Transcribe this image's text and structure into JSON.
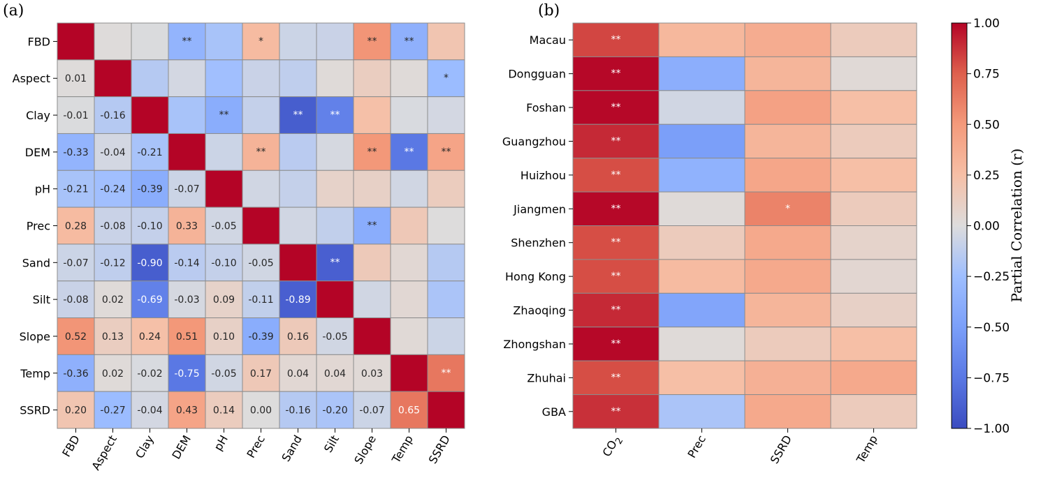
{
  "colors": {
    "cmap": [
      [
        0.0,
        "#3b4cc0"
      ],
      [
        0.125,
        "#5a78e4"
      ],
      [
        0.25,
        "#7b9ff9"
      ],
      [
        0.375,
        "#9ebeff"
      ],
      [
        0.5,
        "#dddcdc"
      ],
      [
        0.625,
        "#f6bfa6"
      ],
      [
        0.75,
        "#f49a7b"
      ],
      [
        0.875,
        "#de604d"
      ],
      [
        1.0,
        "#b40426"
      ]
    ],
    "grid_line": "#8c8c8c"
  },
  "chart_data": [
    {
      "type": "heatmap",
      "panel_label": "(a)",
      "title": "",
      "xlabel": "",
      "ylabel": "",
      "vlim": [
        -1,
        1
      ],
      "layout": "lower-triangle-values-upper-triangle-significance",
      "rows": [
        "FBD",
        "Aspect",
        "Clay",
        "DEM",
        "pH",
        "Prec",
        "Sand",
        "Silt",
        "Slope",
        "Temp",
        "SSRD"
      ],
      "columns": [
        "FBD",
        "Aspect",
        "Clay",
        "DEM",
        "pH",
        "Prec",
        "Sand",
        "Silt",
        "Slope",
        "Temp",
        "SSRD"
      ],
      "values": [
        [
          1,
          0.01,
          -0.01,
          -0.33,
          -0.21,
          0.28,
          -0.07,
          -0.08,
          0.52,
          -0.36,
          0.2
        ],
        [
          0.01,
          1,
          -0.16,
          -0.04,
          -0.24,
          -0.08,
          -0.12,
          0.02,
          0.13,
          0.02,
          -0.27
        ],
        [
          -0.01,
          -0.16,
          1,
          -0.21,
          -0.39,
          -0.1,
          -0.9,
          -0.69,
          0.24,
          -0.02,
          -0.04
        ],
        [
          -0.33,
          -0.04,
          -0.21,
          1,
          -0.07,
          0.33,
          -0.14,
          -0.03,
          0.51,
          -0.75,
          0.43
        ],
        [
          -0.21,
          -0.24,
          -0.39,
          -0.07,
          1,
          -0.05,
          -0.1,
          0.09,
          0.1,
          -0.05,
          0.14
        ],
        [
          0.28,
          -0.08,
          -0.1,
          0.33,
          -0.05,
          1,
          -0.05,
          -0.11,
          -0.39,
          0.17,
          0.0
        ],
        [
          -0.07,
          -0.12,
          -0.9,
          -0.14,
          -0.1,
          -0.05,
          1,
          -0.89,
          0.16,
          0.04,
          -0.16
        ],
        [
          -0.08,
          0.02,
          -0.69,
          -0.03,
          0.09,
          -0.11,
          -0.89,
          1,
          -0.05,
          0.04,
          -0.2
        ],
        [
          0.52,
          0.13,
          0.24,
          0.51,
          0.1,
          -0.39,
          0.16,
          -0.05,
          1,
          0.03,
          -0.07
        ],
        [
          -0.36,
          0.02,
          -0.02,
          -0.75,
          -0.05,
          0.17,
          0.04,
          0.04,
          0.03,
          1,
          0.65
        ],
        [
          0.2,
          -0.27,
          -0.04,
          0.43,
          0.14,
          0.0,
          -0.16,
          -0.2,
          -0.07,
          0.65,
          1
        ]
      ],
      "cell_labels": [
        [
          "",
          "",
          "",
          "**",
          "",
          "*",
          "",
          "",
          "**",
          "**",
          ""
        ],
        [
          "0.01",
          "",
          "",
          "",
          "",
          "",
          "",
          "",
          "",
          "",
          "*"
        ],
        [
          "-0.01",
          "-0.16",
          "",
          "",
          "**",
          "",
          "**",
          "**",
          "",
          "",
          ""
        ],
        [
          "-0.33",
          "-0.04",
          "-0.21",
          "",
          "",
          "**",
          "",
          "",
          "**",
          "**",
          "**"
        ],
        [
          "-0.21",
          "-0.24",
          "-0.39",
          "-0.07",
          "",
          "",
          "",
          "",
          "",
          "",
          ""
        ],
        [
          "0.28",
          "-0.08",
          "-0.10",
          "0.33",
          "-0.05",
          "",
          "",
          "",
          "**",
          "",
          ""
        ],
        [
          "-0.07",
          "-0.12",
          "-0.90",
          "-0.14",
          "-0.10",
          "-0.05",
          "",
          "**",
          "",
          "",
          ""
        ],
        [
          "-0.08",
          "0.02",
          "-0.69",
          "-0.03",
          "0.09",
          "-0.11",
          "-0.89",
          "",
          "",
          "",
          ""
        ],
        [
          "0.52",
          "0.13",
          "0.24",
          "0.51",
          "0.10",
          "-0.39",
          "0.16",
          "-0.05",
          "",
          "",
          ""
        ],
        [
          "-0.36",
          "0.02",
          "-0.02",
          "-0.75",
          "-0.05",
          "0.17",
          "0.04",
          "0.04",
          "0.03",
          "",
          "**"
        ],
        [
          "0.20",
          "-0.27",
          "-0.04",
          "0.43",
          "0.14",
          "0.00",
          "-0.16",
          "-0.20",
          "-0.07",
          "0.65",
          ""
        ]
      ]
    },
    {
      "type": "heatmap",
      "panel_label": "(b)",
      "title": "",
      "xlabel": "",
      "ylabel": "",
      "vlim": [
        -1,
        1
      ],
      "rows": [
        "Macau",
        "Dongguan",
        "Foshan",
        "Guangzhou",
        "Huizhou",
        "Jiangmen",
        "Shenzhen",
        "Hong Kong",
        "Zhaoqing",
        "Zhongshan",
        "Zhuhai",
        "GBA"
      ],
      "columns": [
        "CO2",
        "Prec",
        "SSRD",
        "Temp"
      ],
      "column_subscripts": [
        "2",
        "",
        "",
        ""
      ],
      "values": [
        [
          0.82,
          0.3,
          0.38,
          0.15
        ],
        [
          0.99,
          -0.38,
          0.32,
          0.03
        ],
        [
          0.99,
          -0.05,
          0.45,
          0.25
        ],
        [
          0.9,
          -0.5,
          0.32,
          0.15
        ],
        [
          0.8,
          -0.35,
          0.42,
          0.25
        ],
        [
          0.99,
          0.02,
          0.6,
          0.15
        ],
        [
          0.8,
          0.15,
          0.4,
          0.08
        ],
        [
          0.8,
          0.28,
          0.4,
          0.05
        ],
        [
          0.9,
          -0.45,
          0.32,
          0.1
        ],
        [
          0.99,
          0.02,
          0.15,
          0.25
        ],
        [
          0.8,
          0.25,
          0.35,
          0.4
        ],
        [
          0.88,
          -0.2,
          0.4,
          0.15
        ]
      ],
      "cell_labels": [
        [
          "**",
          "",
          "",
          ""
        ],
        [
          "**",
          "",
          "",
          ""
        ],
        [
          "**",
          "",
          "",
          ""
        ],
        [
          "**",
          "",
          "",
          ""
        ],
        [
          "**",
          "",
          "",
          ""
        ],
        [
          "**",
          "",
          "*",
          ""
        ],
        [
          "**",
          "",
          "",
          ""
        ],
        [
          "**",
          "",
          "",
          ""
        ],
        [
          "**",
          "",
          "",
          ""
        ],
        [
          "**",
          "",
          "",
          ""
        ],
        [
          "**",
          "",
          "",
          ""
        ],
        [
          "**",
          "",
          "",
          ""
        ]
      ]
    }
  ],
  "colorbar": {
    "label": "Partial Correlation (r)",
    "range": [
      -1,
      1
    ],
    "ticks": [
      1.0,
      0.75,
      0.5,
      0.25,
      0.0,
      -0.25,
      -0.5,
      -0.75,
      -1.0
    ],
    "tick_labels": [
      "1.00",
      "0.75",
      "0.50",
      "0.25",
      "0.00",
      "−0.25",
      "−0.50",
      "−0.75",
      "−1.00"
    ]
  }
}
